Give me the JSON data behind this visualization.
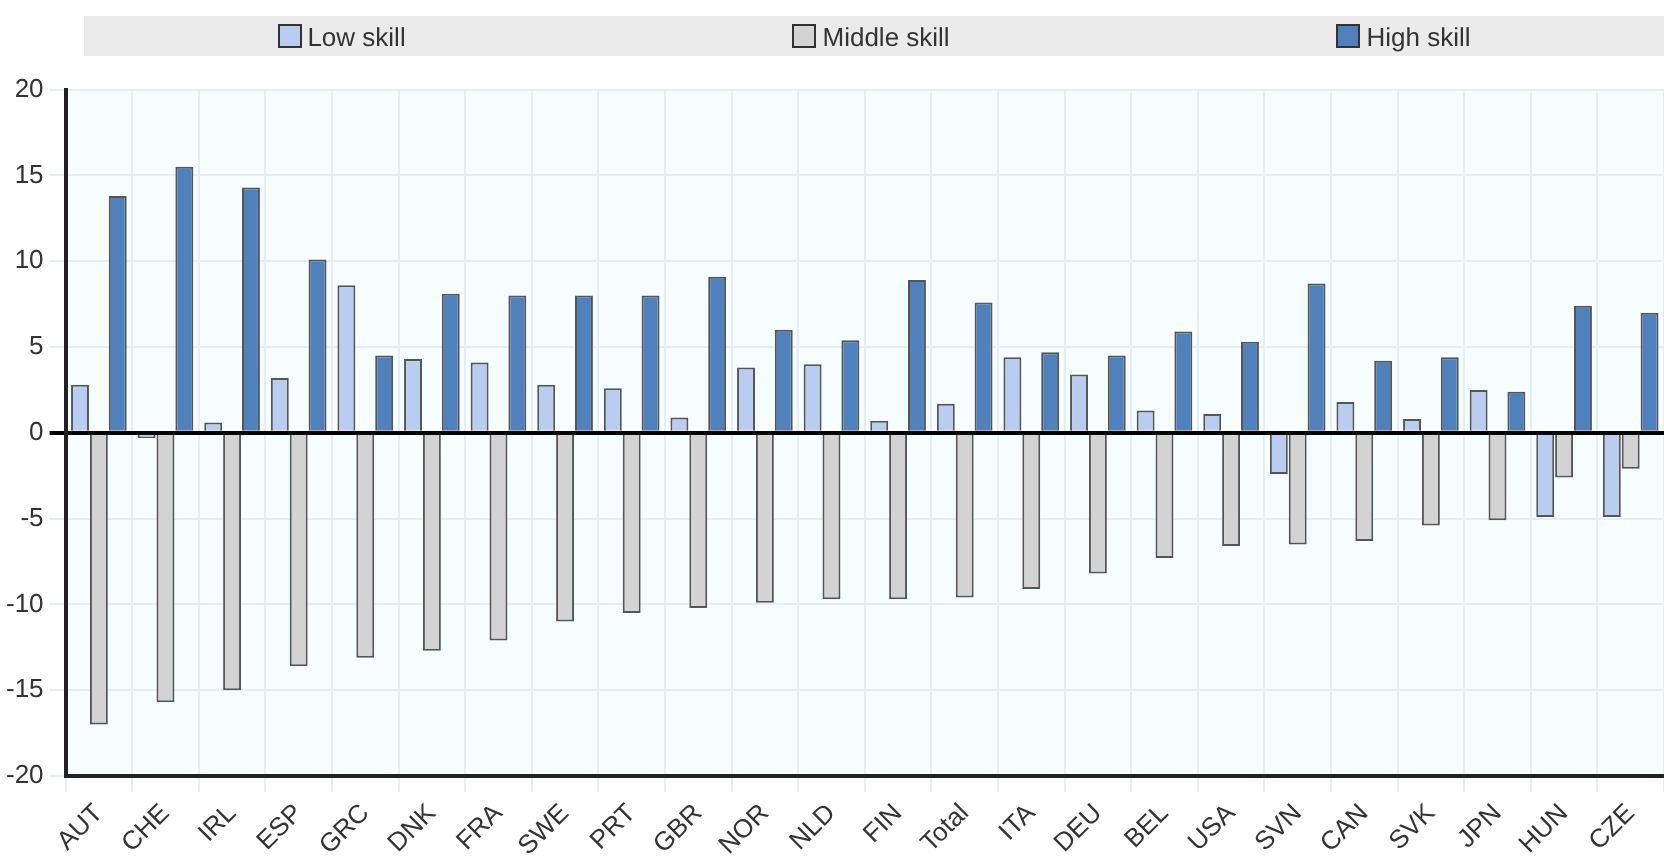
{
  "chart_data": {
    "type": "bar",
    "categories": [
      "AUT",
      "CHE",
      "IRL",
      "ESP",
      "GRC",
      "DNK",
      "FRA",
      "SWE",
      "PRT",
      "GBR",
      "NOR",
      "NLD",
      "FIN",
      "Total",
      "ITA",
      "DEU",
      "BEL",
      "USA",
      "SVN",
      "CAN",
      "SVK",
      "JPN",
      "HUN",
      "CZE"
    ],
    "series": [
      {
        "name": "Low skill",
        "color": "#b8cdf0",
        "values": [
          2.8,
          -0.3,
          0.6,
          3.2,
          8.6,
          4.3,
          4.1,
          2.8,
          2.6,
          0.9,
          3.8,
          4.0,
          0.7,
          1.7,
          4.4,
          3.4,
          1.3,
          1.1,
          -2.4,
          1.8,
          0.8,
          2.5,
          -4.9,
          -4.9
        ]
      },
      {
        "name": "Middle skill",
        "color": "#d3d3d3",
        "values": [
          -17,
          -15.7,
          -15,
          -13.6,
          -13.1,
          -12.7,
          -12.1,
          -11,
          -10.5,
          -10.2,
          -9.9,
          -9.7,
          -9.7,
          -9.6,
          -9.1,
          -8.2,
          -7.3,
          -6.6,
          -6.5,
          -6.3,
          -5.4,
          -5.1,
          -2.6,
          -2.1
        ]
      },
      {
        "name": "High skill",
        "color": "#4f81bd",
        "values": [
          13.8,
          15.5,
          14.3,
          10.1,
          4.5,
          8.1,
          8.0,
          8.0,
          8.0,
          9.1,
          6.0,
          5.4,
          8.9,
          7.6,
          4.7,
          4.5,
          5.9,
          5.3,
          8.7,
          4.2,
          4.4,
          2.4,
          7.4,
          7.0
        ]
      }
    ],
    "ylim": [
      -20,
      20
    ],
    "yticks": [
      -20,
      -15,
      -10,
      -5,
      0,
      5,
      10,
      15,
      20
    ],
    "grid": true,
    "legend": "top"
  }
}
